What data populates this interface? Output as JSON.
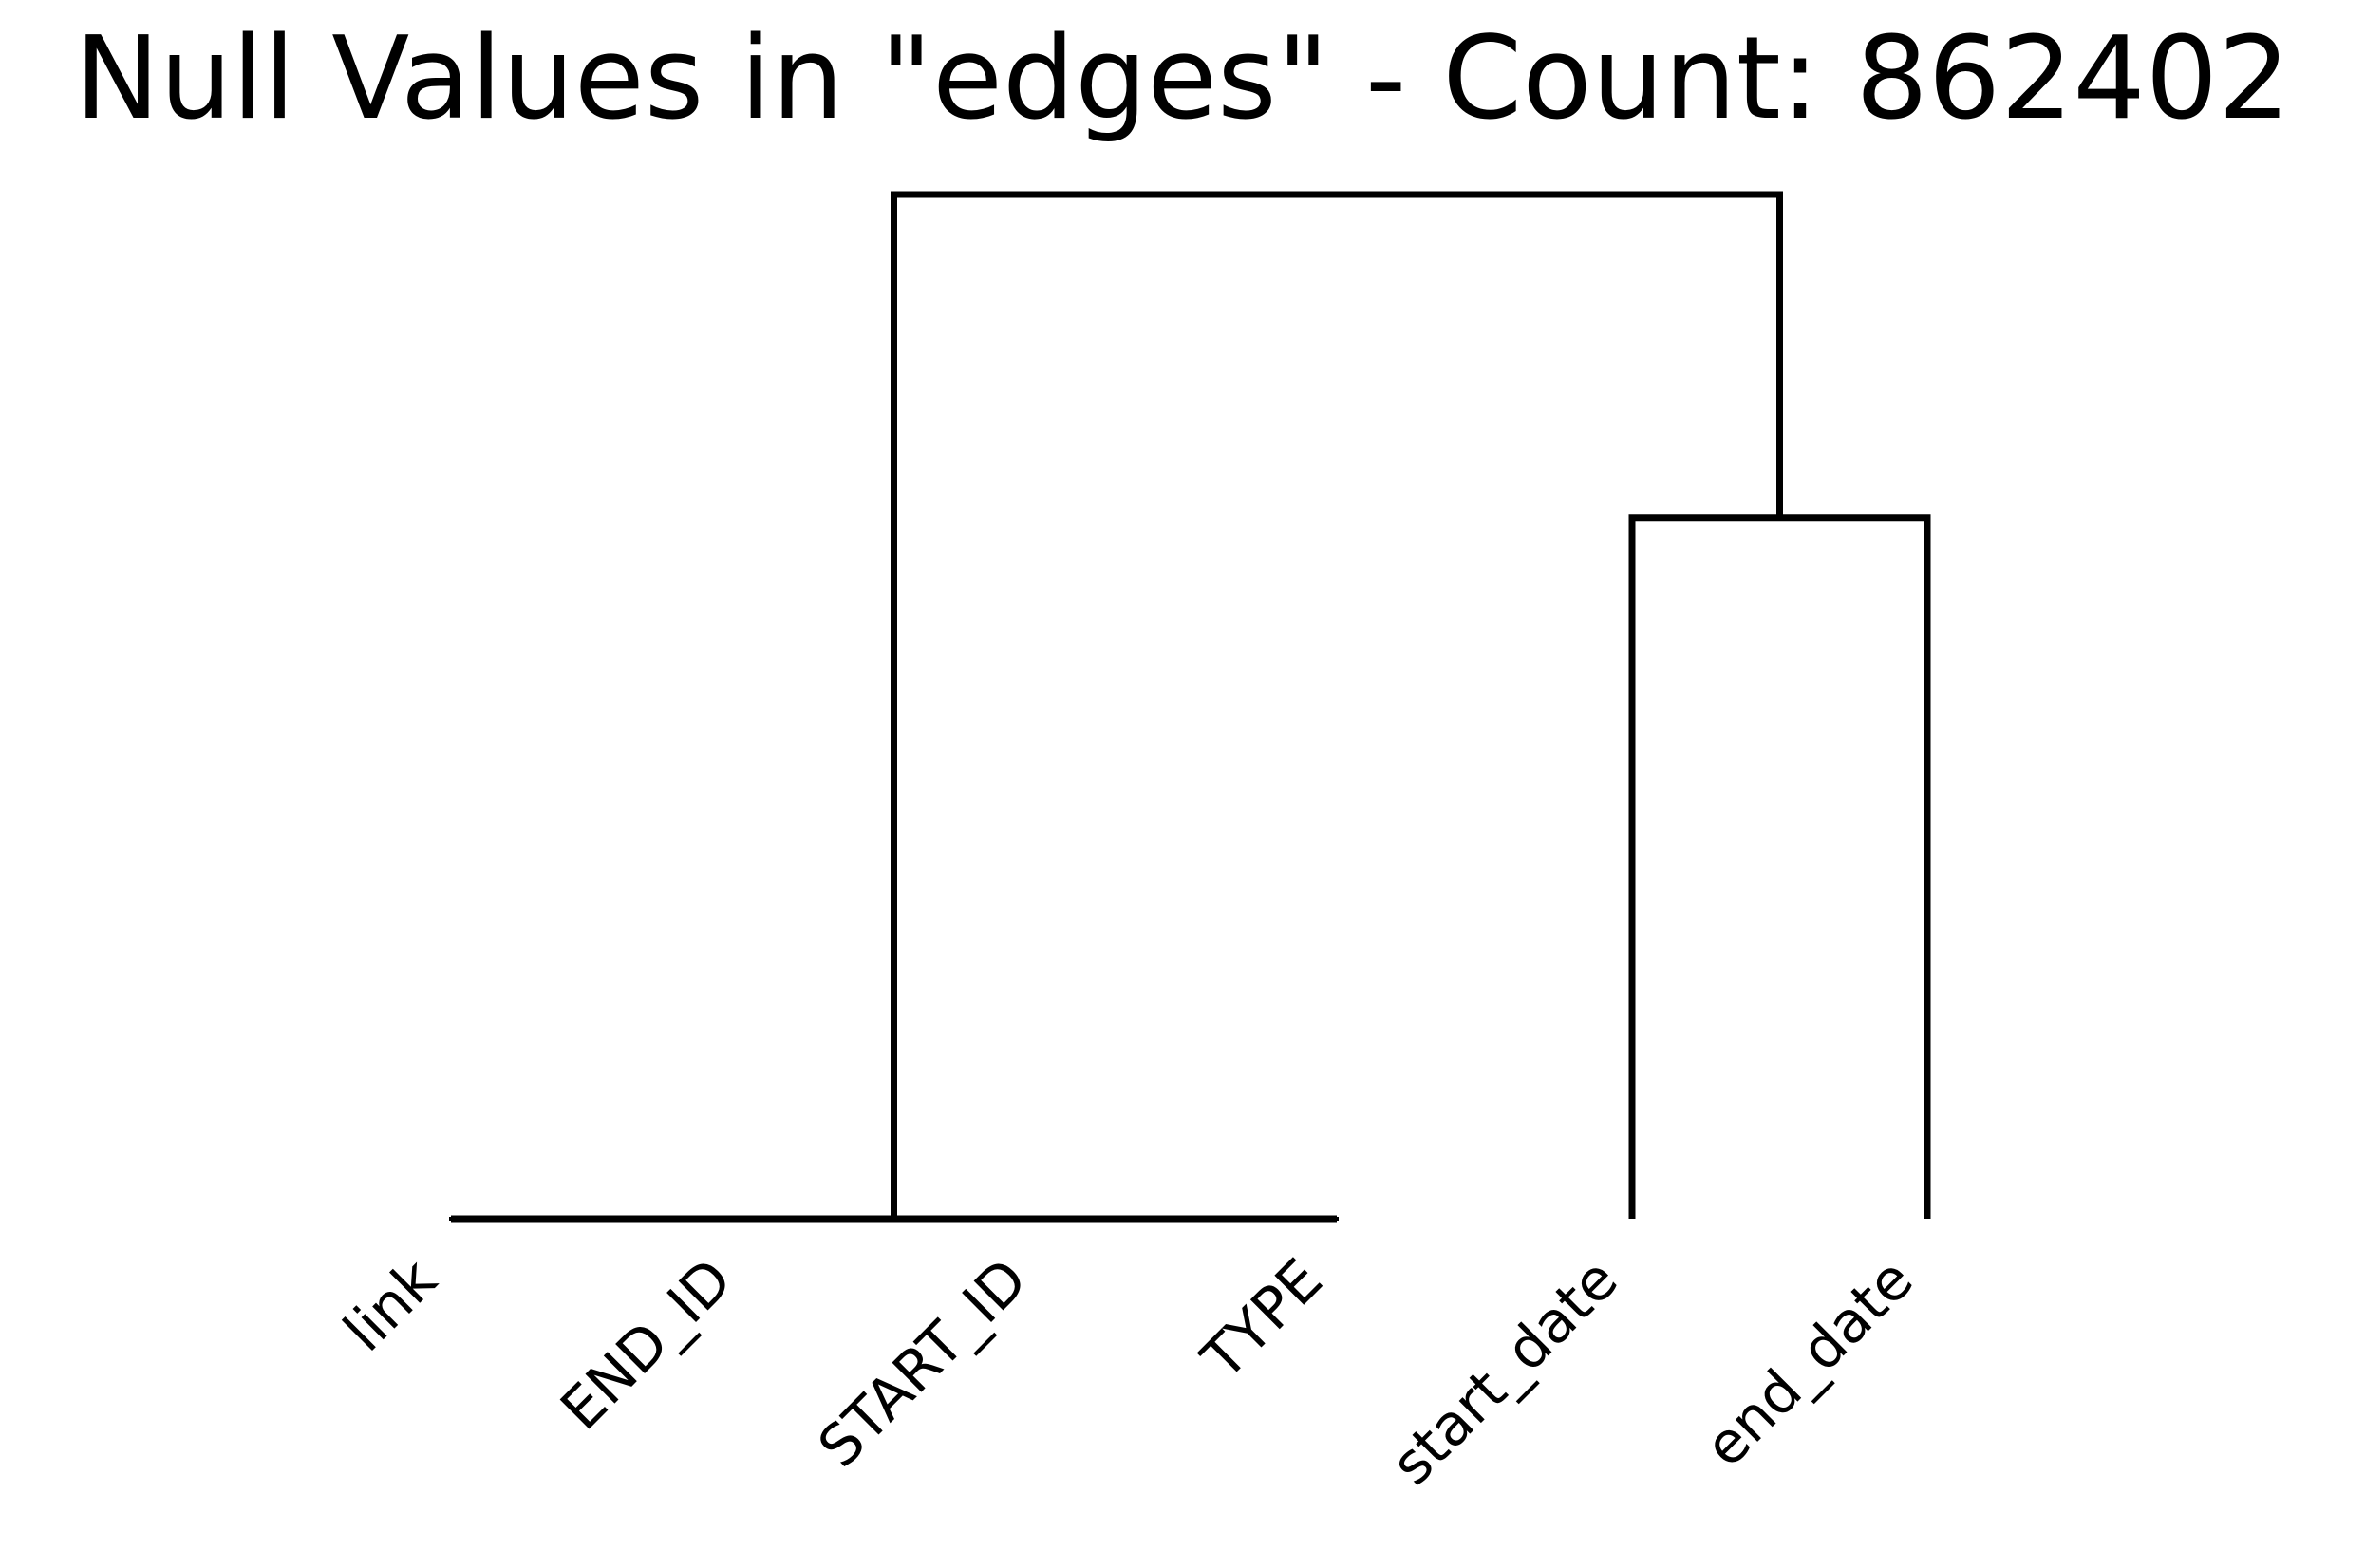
{
  "chart_data": {
    "type": "dendrogram",
    "title": "Null Values in \"edges\" - Count: 862402",
    "leaves": [
      "link",
      "END_ID",
      "START_ID",
      "TYPE",
      "start_date",
      "end_date"
    ],
    "ylim": [
      0,
      1.05
    ],
    "grid": false,
    "merges": [
      {
        "left": "link",
        "right": "END_ID",
        "height": 0.0
      },
      {
        "left": "START_ID",
        "right": "TYPE",
        "height": 0.0
      },
      {
        "left": "cluster-0",
        "right": "cluster-1",
        "height": 0.0
      },
      {
        "left": "start_date",
        "right": "end_date",
        "height": 0.6842
      },
      {
        "left": "cluster-2",
        "right": "cluster-3",
        "height": 1.0
      }
    ],
    "colors": {
      "link": "#000000",
      "background": "#ffffff"
    }
  }
}
